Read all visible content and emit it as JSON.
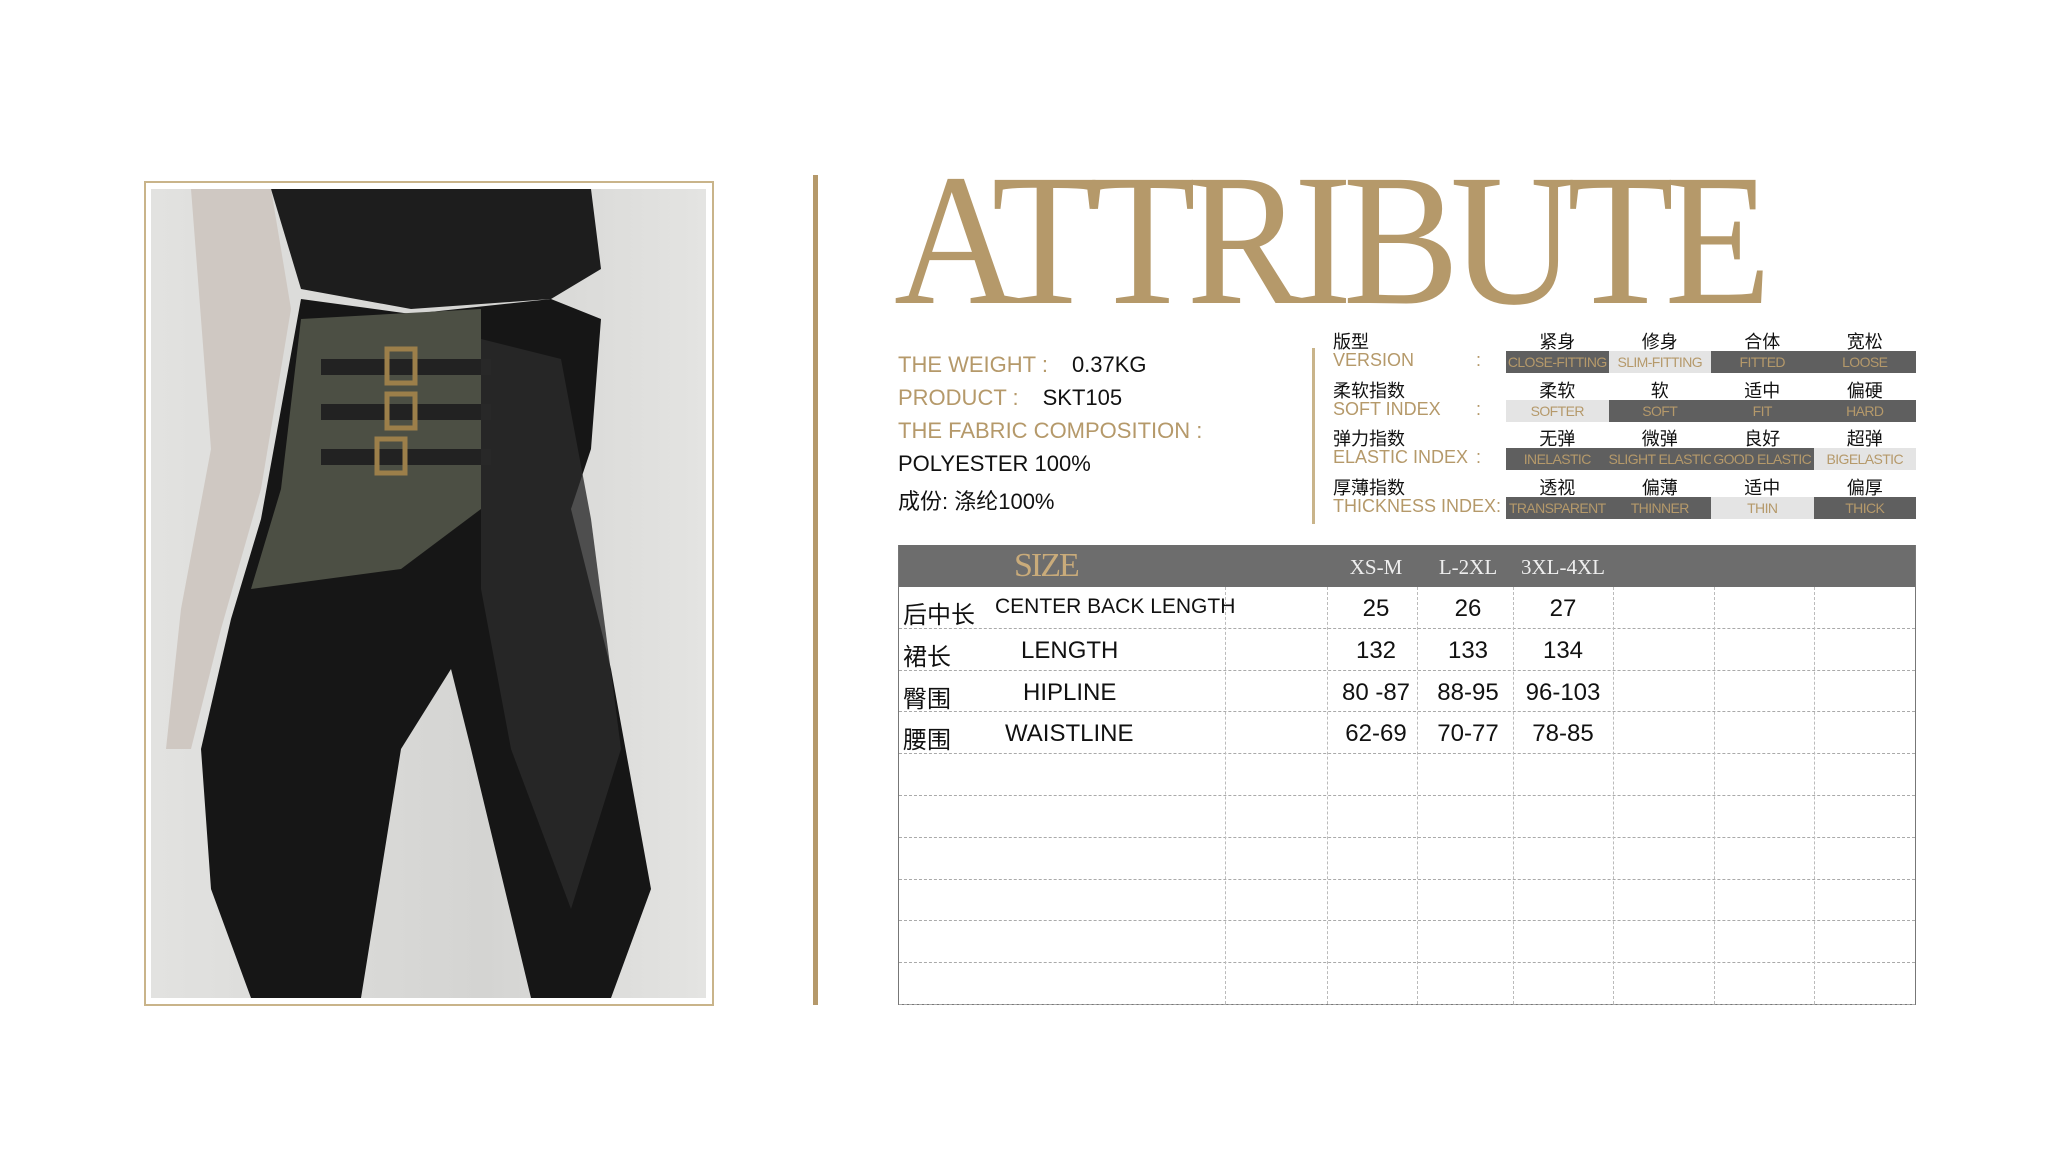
{
  "title": "ATTRIBUTE",
  "info": {
    "weight_label": "THE WEIGHT :",
    "weight_value": "0.37KG",
    "product_label": "PRODUCT :",
    "product_value": "SKT105",
    "fabric_label": "THE FABRIC COMPOSITION :",
    "fabric_en": "POLYESTER 100%",
    "fabric_cn": "成份: 涤纶100%"
  },
  "accent_color": "#b5996a",
  "attributes": [
    {
      "cn": "版型",
      "en": "VERSION",
      "colon": ":",
      "cn_options": [
        "紧身",
        "修身",
        "合体",
        "宽松"
      ],
      "en_options": [
        "CLOSE-FITTING",
        "SLIM-FITTING",
        "FITTED",
        "LOOSE"
      ],
      "selected_index": 1
    },
    {
      "cn": "柔软指数",
      "en": "SOFT INDEX",
      "colon": ":",
      "cn_options": [
        "柔软",
        "软",
        "适中",
        "偏硬"
      ],
      "en_options": [
        "SOFTER",
        "SOFT",
        "FIT",
        "HARD"
      ],
      "selected_index": 0
    },
    {
      "cn": "弹力指数",
      "en": "ELASTIC INDEX",
      "colon": ":",
      "cn_options": [
        "无弹",
        "微弹",
        "良好",
        "超弹"
      ],
      "en_options": [
        "INELASTIC",
        "SLIGHT ELASTIC",
        "GOOD ELASTIC",
        "BIGELASTIC"
      ],
      "selected_index": 3
    },
    {
      "cn": "厚薄指数",
      "en": "THICKNESS INDEX:",
      "colon": "",
      "cn_options": [
        "透视",
        "偏薄",
        "适中",
        "偏厚"
      ],
      "en_options": [
        "TRANSPARENT",
        "THINNER",
        "THIN",
        "THICK"
      ],
      "selected_index": 2
    }
  ],
  "size_table": {
    "header": "SIZE",
    "sizes": [
      "XS-M",
      "L-2XL",
      "3XL-4XL"
    ],
    "rows": [
      {
        "cn": "后中长",
        "en": "CENTER BACK LENGTH",
        "values": [
          "25",
          "26",
          "27"
        ]
      },
      {
        "cn": "裙长",
        "en": "LENGTH",
        "values": [
          "132",
          "133",
          "134"
        ]
      },
      {
        "cn": "臀围",
        "en": "HIPLINE",
        "values": [
          "80 -87",
          "88-95",
          "96-103"
        ]
      },
      {
        "cn": "腰围",
        "en": "WAISTLINE",
        "values": [
          "62-69",
          "70-77",
          "78-85"
        ]
      }
    ]
  }
}
